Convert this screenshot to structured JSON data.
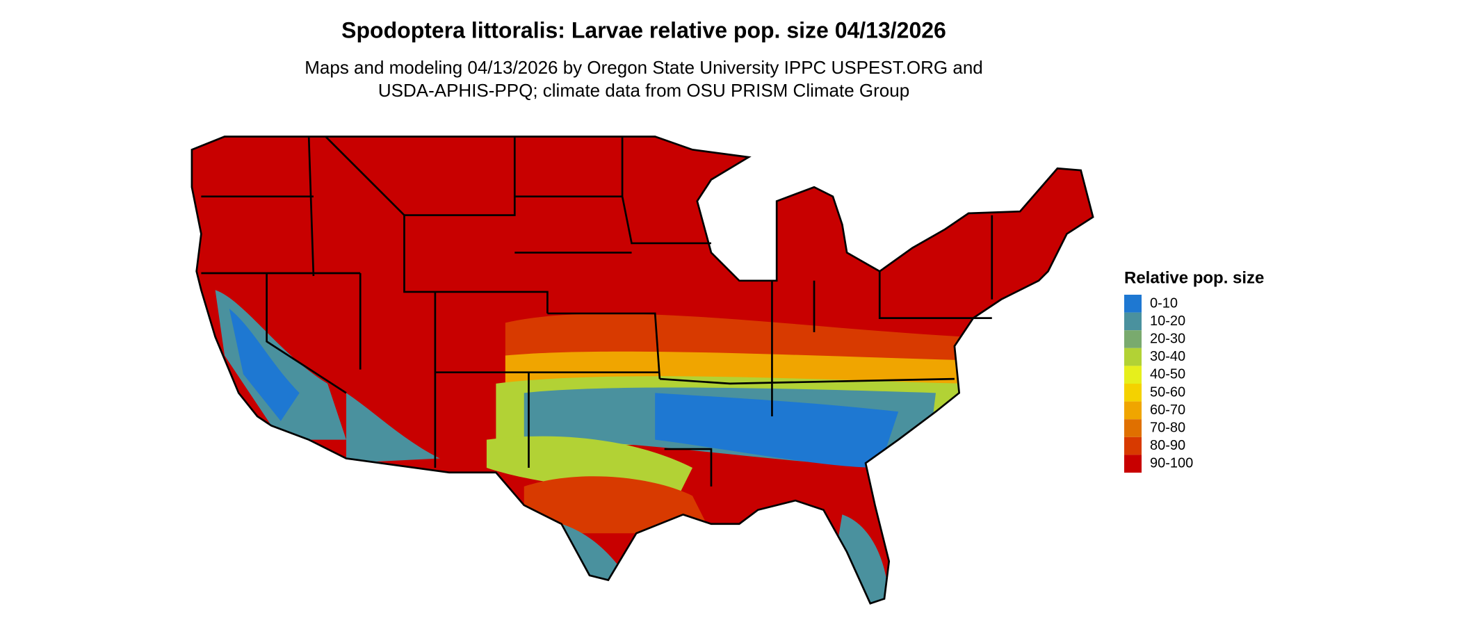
{
  "header": {
    "title": "Spodoptera littoralis: Larvae relative pop. size 04/13/2026",
    "subtitle_lines": [
      "Maps and modeling 04/13/2026 by Oregon State University IPPC USPEST.ORG and",
      "USDA-APHIS-PPQ; climate data from OSU PRISM Climate Group"
    ]
  },
  "legend": {
    "title": "Relative pop. size",
    "items": [
      {
        "label": "0-10",
        "color": "#1e78d2"
      },
      {
        "label": "10-20",
        "color": "#4a919e"
      },
      {
        "label": "20-30",
        "color": "#79aa6e"
      },
      {
        "label": "30-40",
        "color": "#b2d235"
      },
      {
        "label": "40-50",
        "color": "#e6ef1c"
      },
      {
        "label": "50-60",
        "color": "#f4d200"
      },
      {
        "label": "60-70",
        "color": "#f0a500"
      },
      {
        "label": "70-80",
        "color": "#e07000"
      },
      {
        "label": "80-90",
        "color": "#d83a00"
      },
      {
        "label": "90-100",
        "color": "#c80000"
      }
    ]
  }
}
